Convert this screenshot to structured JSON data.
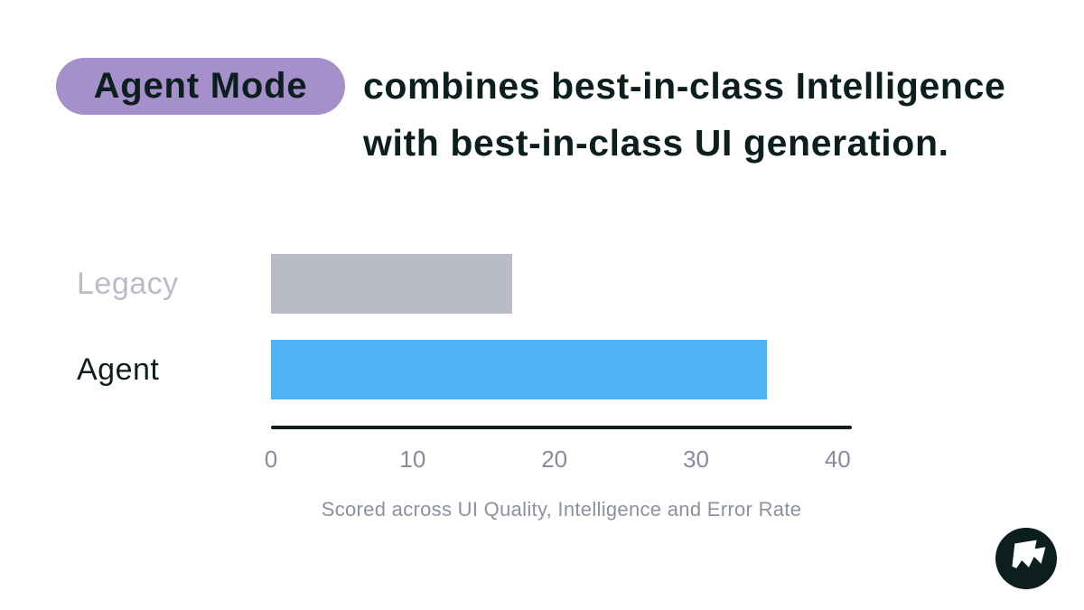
{
  "title": {
    "badge": "Agent Mode",
    "line1": "combines best-in-class Intelligence",
    "line2": "with best-in-class UI generation."
  },
  "chart_data": {
    "type": "bar",
    "orientation": "horizontal",
    "categories": [
      "Legacy",
      "Agent"
    ],
    "values": [
      17,
      35
    ],
    "xlim": [
      0,
      41
    ],
    "xticks": [
      0,
      10,
      20,
      30,
      40
    ],
    "grid": false,
    "legend": false,
    "bar_colors": [
      "#b9bbc5",
      "#4fb3f3"
    ],
    "label_colors": [
      "#b9bcc7",
      "#0c1e1e"
    ],
    "caption": "Scored across UI Quality, Intelligence and Error Rate"
  },
  "colors": {
    "ink": "#0c1e1e",
    "badge_purple": "#a690cb",
    "agent_blue": "#4fb3f3",
    "legacy_gray": "#b9bbc5",
    "tick_gray": "#878c9c",
    "caption_gray": "#8c91a0",
    "background": "#ffffff",
    "logo_background": "#0c1e1e",
    "logo_glyph": "#ffffff"
  }
}
